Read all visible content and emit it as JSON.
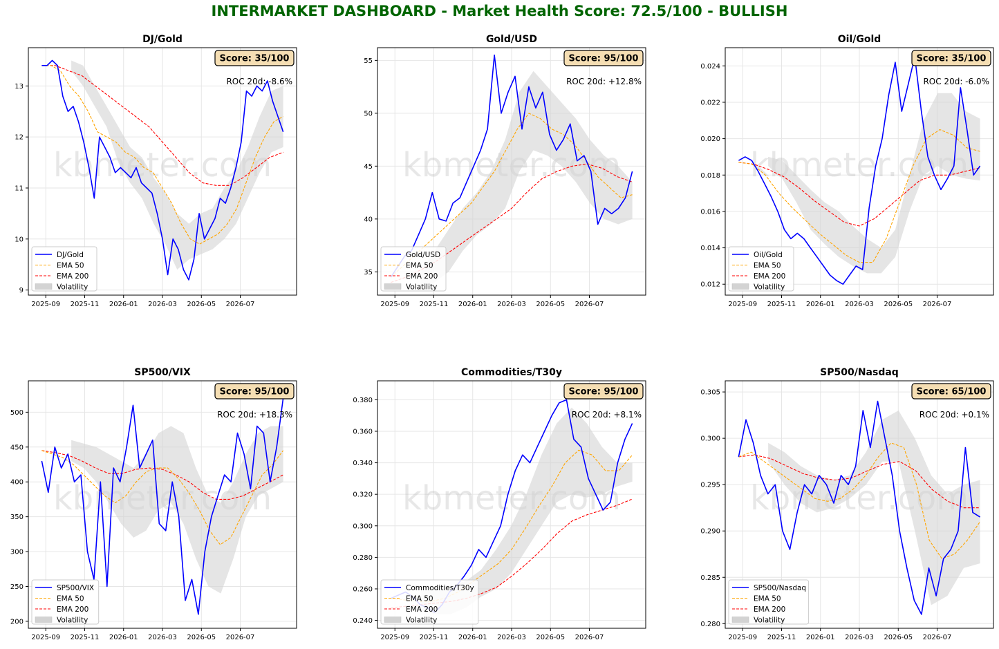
{
  "dashboard": {
    "title": "INTERMARKET DASHBOARD - Market Health Score: 72.5/100 - BULLISH",
    "title_color": "#006400",
    "watermark": "kbmeter.com"
  },
  "colors": {
    "ratio_line": "#0000ff",
    "ema50": "#ffa500",
    "ema200": "#ff0000",
    "volatility_band": "#d3d3d3",
    "score_box_fill": "#f5deb3",
    "grid": "#e6e6e6"
  },
  "chart_data": [
    {
      "type": "line",
      "title": "DJ/Gold",
      "score_label": "Score: 35/100",
      "roc_label": "ROC 20d: -8.6%",
      "x_ticks": [
        "2025-09",
        "2025-11",
        "2026-01",
        "2026-03",
        "2026-05",
        "2026-07"
      ],
      "y_ticks": [
        9,
        10,
        11,
        12,
        13
      ],
      "ylim": [
        8.9,
        13.75
      ],
      "legend": [
        "DJ/Gold",
        "EMA 50",
        "EMA 200",
        "Volatility"
      ],
      "legend_position": "lower-left",
      "grid": true,
      "series_keypoints": {
        "ratio": [
          13.4,
          13.4,
          13.5,
          13.4,
          12.8,
          12.5,
          12.6,
          12.3,
          11.9,
          11.4,
          10.8,
          12.0,
          11.8,
          11.6,
          11.3,
          11.4,
          11.3,
          11.2,
          11.4,
          11.1,
          11.0,
          10.9,
          10.5,
          10.0,
          9.3,
          10.0,
          9.8,
          9.4,
          9.2,
          9.6,
          10.5,
          10.0,
          10.2,
          10.4,
          10.8,
          10.7,
          11.0,
          11.4,
          11.9,
          12.9,
          12.8,
          13.0,
          12.9,
          13.1,
          12.7,
          12.4,
          12.1
        ],
        "ema50": [
          13.4,
          13.4,
          13.3,
          13.0,
          12.8,
          12.5,
          12.1,
          12.0,
          11.9,
          11.7,
          11.6,
          11.4,
          11.3,
          11.0,
          10.7,
          10.3,
          10.0,
          9.9,
          10.0,
          10.1,
          10.3,
          10.6,
          11.1,
          11.6,
          12.0,
          12.3,
          12.4
        ],
        "ema200": [
          13.4,
          13.4,
          13.3,
          13.2,
          13.0,
          12.8,
          12.6,
          12.4,
          12.2,
          11.9,
          11.6,
          11.3,
          11.1,
          11.05,
          11.05,
          11.2,
          11.4,
          11.6,
          11.7
        ],
        "vol_upper": [
          13.5,
          13.4,
          13.0,
          12.6,
          12.2,
          11.8,
          11.6,
          11.2,
          10.9,
          10.5,
          10.3,
          10.5,
          10.6,
          11.0,
          11.3,
          11.8,
          12.4,
          12.9,
          13.0
        ],
        "vol_lower": [
          13.3,
          13.0,
          12.6,
          12.2,
          11.5,
          11.1,
          10.8,
          10.3,
          9.9,
          9.4,
          9.6,
          9.7,
          9.8,
          10.0,
          10.3,
          10.8,
          11.3,
          11.7,
          11.8
        ]
      }
    },
    {
      "type": "line",
      "title": "Gold/USD",
      "score_label": "Score: 95/100",
      "roc_label": "ROC 20d: +12.8%",
      "x_ticks": [
        "2025-09",
        "2025-11",
        "2026-01",
        "2026-03",
        "2026-05",
        "2026-07"
      ],
      "y_ticks": [
        35,
        40,
        45,
        50,
        55
      ],
      "ylim": [
        32.8,
        56.2
      ],
      "legend": [
        "Gold/USD",
        "EMA 50",
        "EMA 200",
        "Volatility"
      ],
      "legend_position": "lower-left",
      "grid": true,
      "series_keypoints": {
        "ratio": [
          34.5,
          35.5,
          36.5,
          37.0,
          38.5,
          40.0,
          42.5,
          40.0,
          39.8,
          41.5,
          42.0,
          43.5,
          45.0,
          46.5,
          48.5,
          55.5,
          50.0,
          52.0,
          53.5,
          48.5,
          52.5,
          50.5,
          52.0,
          48.0,
          46.5,
          47.5,
          49.0,
          45.5,
          46.0,
          44.5,
          39.5,
          41.0,
          40.5,
          41.0,
          42.0,
          44.5
        ],
        "ema50": [
          34.5,
          35.5,
          36.5,
          37.5,
          38.5,
          39.5,
          40.5,
          41.5,
          43.0,
          44.5,
          46.5,
          48.5,
          50.0,
          49.5,
          48.5,
          48.0,
          47.0,
          45.5,
          44.0,
          43.0,
          42.0,
          42.3
        ],
        "ema200": [
          34.0,
          34.5,
          35.2,
          36.0,
          37.0,
          38.0,
          39.0,
          40.0,
          41.0,
          42.5,
          43.8,
          44.5,
          45.0,
          45.2,
          44.8,
          44.0,
          43.5
        ],
        "vol_upper": [
          35.0,
          37.0,
          39.0,
          41.0,
          42.5,
          44.5,
          47.5,
          52.0,
          54.0,
          52.5,
          51.0,
          49.5,
          47.5,
          46.0,
          45.0,
          43.5
        ],
        "vol_lower": [
          33.5,
          34.0,
          35.0,
          37.0,
          38.5,
          39.5,
          41.0,
          44.5,
          46.5,
          46.0,
          45.0,
          43.5,
          41.5,
          40.0,
          39.5,
          40.0
        ]
      }
    },
    {
      "type": "line",
      "title": "Oil/Gold",
      "score_label": "Score: 35/100",
      "roc_label": "ROC 20d: -6.0%",
      "x_ticks": [
        "2025-09",
        "2025-11",
        "2026-01",
        "2026-03",
        "2026-05",
        "2026-07"
      ],
      "y_ticks": [
        0.012,
        0.014,
        0.016,
        0.018,
        0.02,
        0.022,
        0.024
      ],
      "ylim": [
        0.0114,
        0.025
      ],
      "legend": [
        "Oil/Gold",
        "EMA 50",
        "EMA 200",
        "Volatility"
      ],
      "legend_position": "lower-left",
      "grid": true,
      "series_keypoints": {
        "ratio": [
          0.0188,
          0.019,
          0.0188,
          0.0182,
          0.0175,
          0.0168,
          0.016,
          0.015,
          0.0145,
          0.0148,
          0.0145,
          0.014,
          0.0135,
          0.013,
          0.0125,
          0.0122,
          0.012,
          0.0125,
          0.013,
          0.0128,
          0.0162,
          0.0185,
          0.02,
          0.0224,
          0.0242,
          0.0215,
          0.023,
          0.0245,
          0.0215,
          0.019,
          0.018,
          0.0172,
          0.0178,
          0.0185,
          0.0228,
          0.0205,
          0.018,
          0.0185
        ],
        "ema50": [
          0.0187,
          0.0186,
          0.018,
          0.017,
          0.0162,
          0.0155,
          0.0148,
          0.0142,
          0.0136,
          0.0132,
          0.0132,
          0.0145,
          0.0165,
          0.0185,
          0.02,
          0.0205,
          0.0202,
          0.0195,
          0.0193
        ],
        "ema200": [
          0.0187,
          0.0186,
          0.0183,
          0.0179,
          0.0173,
          0.0166,
          0.016,
          0.0154,
          0.0152,
          0.0156,
          0.0163,
          0.017,
          0.0177,
          0.018,
          0.018,
          0.0182,
          0.0184
        ],
        "vol_upper": [
          0.019,
          0.0188,
          0.018,
          0.0172,
          0.0165,
          0.016,
          0.0152,
          0.0145,
          0.014,
          0.015,
          0.018,
          0.021,
          0.0225,
          0.0225,
          0.0215,
          0.0211
        ],
        "vol_lower": [
          0.0185,
          0.0178,
          0.0165,
          0.015,
          0.0142,
          0.0135,
          0.013,
          0.0126,
          0.0126,
          0.0135,
          0.016,
          0.018,
          0.0185,
          0.018,
          0.0178,
          0.0177
        ]
      }
    },
    {
      "type": "line",
      "title": "SP500/VIX",
      "score_label": "Score: 95/100",
      "roc_label": "ROC 20d: +18.3%",
      "x_ticks": [
        "2025-09",
        "2025-11",
        "2026-01",
        "2026-03",
        "2026-05",
        "2026-07"
      ],
      "y_ticks": [
        200,
        250,
        300,
        350,
        400,
        450,
        500
      ],
      "ylim": [
        190,
        545
      ],
      "legend": [
        "SP500/VIX",
        "EMA 50",
        "EMA 200",
        "Volatility"
      ],
      "legend_position": "lower-left",
      "grid": true,
      "series_keypoints": {
        "ratio": [
          430,
          385,
          450,
          420,
          440,
          400,
          410,
          300,
          260,
          400,
          250,
          420,
          400,
          450,
          510,
          420,
          440,
          460,
          340,
          330,
          400,
          350,
          230,
          260,
          210,
          300,
          350,
          380,
          410,
          400,
          470,
          440,
          390,
          480,
          470,
          400,
          450,
          520
        ],
        "ema50": [
          445,
          440,
          435,
          425,
          410,
          395,
          380,
          370,
          380,
          400,
          415,
          420,
          420,
          405,
          385,
          360,
          330,
          310,
          320,
          350,
          380,
          410,
          425,
          445
        ],
        "ema200": [
          445,
          442,
          438,
          430,
          420,
          412,
          412,
          418,
          420,
          418,
          410,
          400,
          385,
          375,
          375,
          380,
          390,
          400,
          410
        ],
        "vol_upper": [
          460,
          455,
          450,
          440,
          430,
          420,
          440,
          470,
          480,
          470,
          420,
          380,
          370,
          400,
          440,
          470,
          480,
          480
        ],
        "vol_lower": [
          430,
          420,
          400,
          370,
          340,
          320,
          330,
          360,
          370,
          340,
          290,
          250,
          240,
          290,
          350,
          380,
          390,
          400
        ]
      }
    },
    {
      "type": "line",
      "title": "Commodities/T30y",
      "score_label": "Score: 95/100",
      "roc_label": "ROC 20d: +8.1%",
      "x_ticks": [
        "2025-09",
        "2025-11",
        "2026-01",
        "2026-03",
        "2026-05",
        "2026-07"
      ],
      "y_ticks": [
        0.24,
        0.26,
        0.28,
        0.3,
        0.32,
        0.34,
        0.36,
        0.38
      ],
      "ylim": [
        0.235,
        0.392
      ],
      "legend": [
        "Commodities/T30y",
        "EMA 50",
        "EMA 200",
        "Volatility"
      ],
      "legend_position": "lower-left",
      "grid": true,
      "series_keypoints": {
        "ratio": [
          0.254,
          0.256,
          0.258,
          0.255,
          0.25,
          0.248,
          0.245,
          0.25,
          0.258,
          0.262,
          0.268,
          0.275,
          0.285,
          0.28,
          0.29,
          0.3,
          0.32,
          0.335,
          0.345,
          0.34,
          0.35,
          0.36,
          0.37,
          0.378,
          0.38,
          0.355,
          0.35,
          0.33,
          0.32,
          0.31,
          0.315,
          0.34,
          0.355,
          0.365
        ],
        "ema50": [
          0.254,
          0.253,
          0.252,
          0.252,
          0.254,
          0.258,
          0.264,
          0.27,
          0.276,
          0.285,
          0.298,
          0.312,
          0.325,
          0.34,
          0.348,
          0.345,
          0.335,
          0.335,
          0.345
        ],
        "ema200": [
          0.248,
          0.249,
          0.25,
          0.251,
          0.252,
          0.254,
          0.257,
          0.261,
          0.268,
          0.276,
          0.285,
          0.295,
          0.303,
          0.307,
          0.31,
          0.313,
          0.317
        ],
        "vol_upper": [
          0.26,
          0.262,
          0.262,
          0.265,
          0.272,
          0.285,
          0.3,
          0.32,
          0.345,
          0.365,
          0.375,
          0.365,
          0.35,
          0.34,
          0.34
        ],
        "vol_lower": [
          0.246,
          0.244,
          0.244,
          0.248,
          0.255,
          0.26,
          0.27,
          0.285,
          0.3,
          0.315,
          0.32,
          0.318,
          0.32,
          0.325,
          0.328
        ]
      }
    },
    {
      "type": "line",
      "title": "SP500/Nasdaq",
      "score_label": "Score: 65/100",
      "roc_label": "ROC 20d: +0.1%",
      "x_ticks": [
        "2025-09",
        "2025-11",
        "2026-01",
        "2026-03",
        "2026-05",
        "2026-07"
      ],
      "y_ticks": [
        0.28,
        0.285,
        0.29,
        0.295,
        0.3,
        0.305
      ],
      "ylim": [
        0.2795,
        0.3062
      ],
      "legend": [
        "SP500/Nasdaq",
        "EMA 50",
        "EMA 200",
        "Volatility"
      ],
      "legend_position": "lower-left",
      "grid": true,
      "series_keypoints": {
        "ratio": [
          0.298,
          0.302,
          0.2995,
          0.296,
          0.294,
          0.295,
          0.29,
          0.288,
          0.292,
          0.295,
          0.294,
          0.296,
          0.295,
          0.293,
          0.296,
          0.295,
          0.297,
          0.303,
          0.299,
          0.304,
          0.3,
          0.296,
          0.29,
          0.286,
          0.2825,
          0.281,
          0.286,
          0.283,
          0.287,
          0.288,
          0.29,
          0.299,
          0.292,
          0.2915
        ],
        "ema50": [
          0.298,
          0.2985,
          0.2975,
          0.2965,
          0.2955,
          0.2945,
          0.2935,
          0.2932,
          0.2935,
          0.2945,
          0.296,
          0.298,
          0.2995,
          0.299,
          0.295,
          0.289,
          0.287,
          0.2875,
          0.289,
          0.291
        ],
        "ema200": [
          0.298,
          0.2982,
          0.2978,
          0.297,
          0.2962,
          0.2957,
          0.2955,
          0.2957,
          0.2965,
          0.2972,
          0.2975,
          0.2965,
          0.2945,
          0.2932,
          0.2925,
          0.2925
        ],
        "vol_upper": [
          0.2995,
          0.2985,
          0.297,
          0.296,
          0.2955,
          0.296,
          0.2985,
          0.302,
          0.303,
          0.3,
          0.296,
          0.294,
          0.295,
          0.2955
        ],
        "vol_lower": [
          0.2975,
          0.295,
          0.293,
          0.292,
          0.2925,
          0.2935,
          0.295,
          0.2975,
          0.2975,
          0.29,
          0.282,
          0.283,
          0.286,
          0.2865
        ]
      }
    }
  ]
}
